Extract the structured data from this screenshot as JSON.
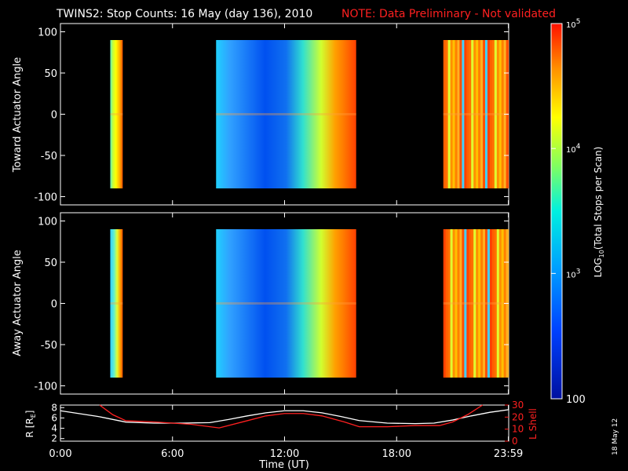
{
  "header": {
    "title": "TWINS2: Stop Counts: 16 May (day 136), 2010",
    "note": "NOTE: Data Preliminary - Not validated",
    "note_color": "#ff2020",
    "side_stamp": "18 May 12"
  },
  "chart_data": [
    {
      "type": "heatmap",
      "name": "toward",
      "ylabel": "Toward Actuator Angle",
      "xlim_hours": [
        0,
        24
      ],
      "ylim": [
        -110,
        110
      ],
      "yticks": [
        100,
        50,
        0,
        -50,
        -100
      ],
      "angle_range": [
        -90,
        90
      ],
      "segments": [
        {
          "start": "02:40",
          "end": "03:20",
          "gradient": "yellow-to-red"
        },
        {
          "start": "08:20",
          "end": "15:50",
          "gradient": "blue-center-to-red"
        },
        {
          "start": "20:30",
          "end": "23:59",
          "gradient": "striped-red"
        }
      ]
    },
    {
      "type": "heatmap",
      "name": "away",
      "ylabel": "Away Actuator Angle",
      "xlim_hours": [
        0,
        24
      ],
      "ylim": [
        -110,
        110
      ],
      "yticks": [
        100,
        50,
        0,
        -50,
        -100
      ],
      "angle_range": [
        -90,
        90
      ],
      "segments": [
        {
          "start": "02:40",
          "end": "03:20",
          "gradient": "cyan-to-red"
        },
        {
          "start": "08:20",
          "end": "15:50",
          "gradient": "blue-center-to-red"
        },
        {
          "start": "20:30",
          "end": "23:59",
          "gradient": "striped-red"
        }
      ]
    },
    {
      "type": "line",
      "name": "orbit",
      "xlabel": "Time (UT)",
      "xticks": [
        "0:00",
        "6:00",
        "12:00",
        "18:00",
        "23:59"
      ],
      "xtick_hours": [
        0,
        6,
        12,
        18,
        23.983
      ],
      "left_axis": {
        "label": "R [R",
        "label_sub": "E",
        "label_end": "]",
        "ylim": [
          1.5,
          8.5
        ],
        "yticks": [
          2,
          4,
          6,
          8
        ]
      },
      "right_axis": {
        "label": "L Shell",
        "ylim": [
          0,
          30
        ],
        "yticks": [
          0,
          10,
          20,
          30
        ]
      },
      "series": [
        {
          "axis": "left",
          "color": "#ffffff",
          "x": [
            0,
            2,
            3.5,
            5,
            6.5,
            8,
            9,
            10,
            11,
            12,
            13,
            14,
            15,
            16,
            17.5,
            19,
            20,
            21,
            22,
            23,
            24
          ],
          "y": [
            7.4,
            6.3,
            5.2,
            5.0,
            5.0,
            5.1,
            5.7,
            6.4,
            7.0,
            7.4,
            7.4,
            7.0,
            6.3,
            5.5,
            5.0,
            4.9,
            5.0,
            5.6,
            6.4,
            7.1,
            7.6
          ]
        },
        {
          "axis": "right",
          "color": "#ff2020",
          "x": [
            2.1,
            2.8,
            3.5,
            5,
            7,
            8.5,
            10,
            11,
            12,
            13,
            14,
            15.2,
            16,
            17.5,
            19,
            20.3,
            21,
            21.8,
            22.6
          ],
          "y": [
            30,
            22,
            17,
            16,
            14,
            11,
            17,
            21,
            23,
            23,
            21,
            16,
            12,
            12,
            13,
            13,
            16,
            22,
            30
          ]
        }
      ]
    }
  ],
  "colorbar": {
    "label": "LOG",
    "label_sub": "10",
    "label_rest": "(Total Stops per Scan)",
    "ticks": [
      {
        "text": "10",
        "sup": "5",
        "frac": 0.0
      },
      {
        "text": "10",
        "sup": "4",
        "frac": 0.333
      },
      {
        "text": "10",
        "sup": "3",
        "frac": 0.666
      },
      {
        "text": "100",
        "sup": "",
        "frac": 1.0
      }
    ]
  }
}
